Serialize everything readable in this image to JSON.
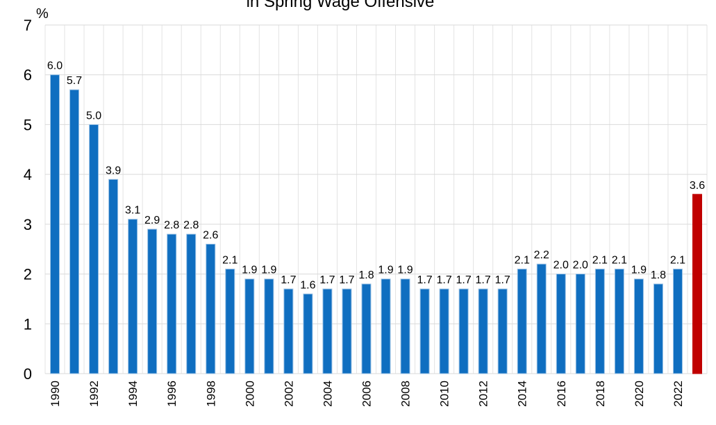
{
  "chart_data": {
    "type": "bar",
    "title": "in Spring Wage Offensive",
    "y_unit": "%",
    "categories": [
      "1990",
      null,
      "1992",
      null,
      "1994",
      null,
      "1996",
      null,
      "1998",
      null,
      "2000",
      null,
      "2002",
      null,
      "2004",
      null,
      "2006",
      null,
      "2008",
      null,
      "2010",
      null,
      "2012",
      null,
      "2014",
      null,
      "2016",
      null,
      "2018",
      null,
      "2020",
      null,
      "2022",
      null
    ],
    "values": [
      6.0,
      5.7,
      5.0,
      3.9,
      3.1,
      2.9,
      2.8,
      2.8,
      2.6,
      2.1,
      1.9,
      1.9,
      1.7,
      1.6,
      1.7,
      1.7,
      1.8,
      1.9,
      1.9,
      1.7,
      1.7,
      1.7,
      1.7,
      1.7,
      2.1,
      2.2,
      2.0,
      2.0,
      2.1,
      2.1,
      1.9,
      1.8,
      2.1,
      3.6
    ],
    "value_labels": [
      "6.0",
      "5.7",
      "5.0",
      "3.9",
      "3.1",
      "2.9",
      "2.8",
      "2.8",
      "2.6",
      "2.1",
      "1.9",
      "1.9",
      "1.7",
      "1.6",
      "1.7",
      "1.7",
      "1.8",
      "1.9",
      "1.9",
      "1.7",
      "1.7",
      "1.7",
      "1.7",
      "1.7",
      "2.1",
      "2.2",
      "2.0",
      "2.0",
      "2.1",
      "2.1",
      "1.9",
      "1.8",
      "2.1",
      "3.6"
    ],
    "colors": [
      "#0f6ec0",
      "#0f6ec0",
      "#0f6ec0",
      "#0f6ec0",
      "#0f6ec0",
      "#0f6ec0",
      "#0f6ec0",
      "#0f6ec0",
      "#0f6ec0",
      "#0f6ec0",
      "#0f6ec0",
      "#0f6ec0",
      "#0f6ec0",
      "#0f6ec0",
      "#0f6ec0",
      "#0f6ec0",
      "#0f6ec0",
      "#0f6ec0",
      "#0f6ec0",
      "#0f6ec0",
      "#0f6ec0",
      "#0f6ec0",
      "#0f6ec0",
      "#0f6ec0",
      "#0f6ec0",
      "#0f6ec0",
      "#0f6ec0",
      "#0f6ec0",
      "#0f6ec0",
      "#0f6ec0",
      "#0f6ec0",
      "#0f6ec0",
      "#0f6ec0",
      "#c00000"
    ],
    "ylim": [
      0,
      7
    ],
    "yticks": [
      0,
      1,
      2,
      3,
      4,
      5,
      6,
      7
    ],
    "grid": true
  }
}
